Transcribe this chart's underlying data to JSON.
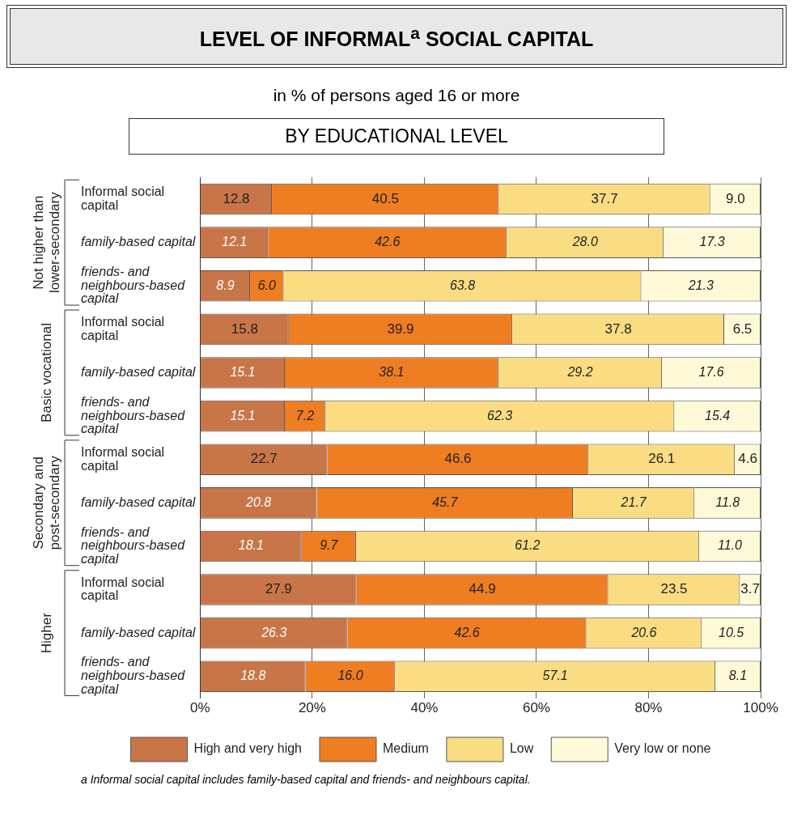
{
  "chart_data": {
    "type": "bar",
    "orientation": "horizontal",
    "stacked": true,
    "title": "LEVEL OF INFORMAL$^{a}$ SOCIAL CAPITAL",
    "subtitle": "in % of persons aged 16 or more",
    "categories": [
      "Informal social capital",
      "family-based capital",
      "friends- and neighbours-based capital",
      "Informal social capital",
      "family-based capital",
      "friends- and neighbours-based capital",
      "Informal social capital",
      "family-based capital",
      "friends- and neighbours-based capital",
      "Informal social capital",
      "family-based capital",
      "friends- and neighbours-based capital"
    ],
    "series": [
      {
        "name": "High and very high",
        "color": "#c87548",
        "values": [
          12.8,
          12.1,
          8.9,
          15.8,
          15.1,
          15.1,
          22.7,
          20.8,
          18.1,
          27.9,
          26.3,
          18.8
        ],
        "value_labels": [
          "12.8",
          "12.1",
          "8.9",
          "15.8",
          "15.1",
          "15.1",
          "22.7",
          "20.8",
          "18.1",
          "27.9",
          "26.3",
          "18.8"
        ]
      },
      {
        "name": "Medium",
        "color": "#ef7d22",
        "values": [
          40.5,
          42.6,
          6.0,
          39.9,
          38.1,
          7.2,
          46.6,
          45.7,
          9.7,
          44.9,
          42.6,
          16.0
        ],
        "value_labels": [
          "40.5",
          "42.6",
          "6.0",
          "39.9",
          "38.1",
          "7.2",
          "46.6",
          "45.7",
          "9.7",
          "44.9",
          "42.6",
          "16.0"
        ]
      },
      {
        "name": "Low",
        "color": "#fadd82",
        "values": [
          37.7,
          28.0,
          63.8,
          37.8,
          29.2,
          62.3,
          26.1,
          21.7,
          61.2,
          23.5,
          20.6,
          57.1
        ],
        "value_labels": [
          "37.7",
          "28.0",
          "63.8",
          "37.8",
          "29.2",
          "62.3",
          "26.1",
          "21.7",
          "61.2",
          "23.5",
          "20.6",
          "57.1"
        ]
      },
      {
        "name": "Very low or none",
        "color": "#fff9d8",
        "values": [
          9.0,
          17.3,
          21.3,
          6.5,
          17.6,
          15.4,
          4.6,
          11.8,
          11.0,
          3.7,
          10.5,
          8.1
        ],
        "value_labels": [
          "9.0",
          "17.3",
          "21.3",
          "6.5",
          "17.6",
          "15.4",
          "4.6",
          "11.8",
          "11.0",
          "3.7",
          "10.5",
          "8.1"
        ]
      }
    ],
    "xlim": [
      0,
      100
    ],
    "xticks": [
      {
        "value": 0,
        "label": "0%"
      },
      {
        "value": 20,
        "label": "20%"
      },
      {
        "value": 40,
        "label": "40%"
      },
      {
        "value": 60,
        "label": "60%"
      },
      {
        "value": 80,
        "label": "80%"
      },
      {
        "value": 100,
        "label": "100%"
      }
    ],
    "grid": "x",
    "legend": "bottom",
    "annotations": [
      "BY EDUCATIONAL LEVEL",
      "Not higher than lower-secondary",
      "Basic vocational",
      "Secondary and post-secondary",
      "Higher",
      "a Informal social capital includes family-based capital and friends- and neighbours capital."
    ]
  }
}
